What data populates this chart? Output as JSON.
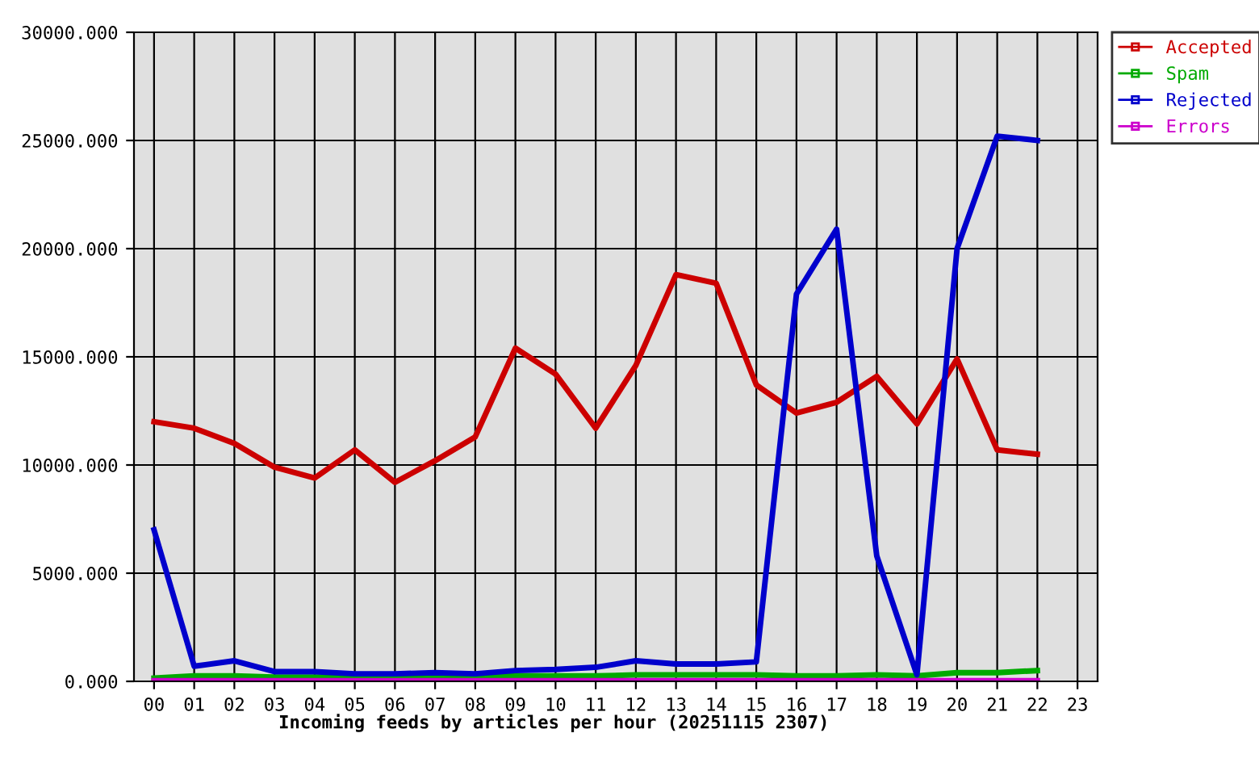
{
  "chart_data": {
    "type": "line",
    "xlabel": "Incoming feeds by articles per hour (20251115 2307)",
    "categories": [
      "00",
      "01",
      "02",
      "03",
      "04",
      "05",
      "06",
      "07",
      "08",
      "09",
      "10",
      "11",
      "12",
      "13",
      "14",
      "15",
      "16",
      "17",
      "18",
      "19",
      "20",
      "21",
      "22",
      "23"
    ],
    "series": [
      {
        "name": "Accepted",
        "color": "#cc0000",
        "values": [
          12000,
          11700,
          11000,
          9900,
          9400,
          10700,
          9200,
          10200,
          11300,
          15400,
          14200,
          11700,
          14600,
          18800,
          18400,
          13700,
          12400,
          12900,
          14100,
          11900,
          14900,
          10700,
          10500,
          null
        ]
      },
      {
        "name": "Spam",
        "color": "#00aa00",
        "values": [
          150,
          250,
          250,
          200,
          200,
          200,
          200,
          250,
          250,
          250,
          250,
          250,
          300,
          300,
          300,
          300,
          250,
          250,
          300,
          250,
          400,
          400,
          500,
          null
        ]
      },
      {
        "name": "Rejected",
        "color": "#0000cc",
        "values": [
          7000,
          700,
          950,
          450,
          450,
          350,
          350,
          400,
          350,
          500,
          550,
          650,
          950,
          800,
          800,
          900,
          17900,
          20900,
          5800,
          300,
          20000,
          25200,
          25000,
          null
        ]
      },
      {
        "name": "Errors",
        "color": "#cc00cc",
        "values": [
          30,
          30,
          30,
          30,
          30,
          30,
          30,
          30,
          30,
          30,
          30,
          30,
          30,
          30,
          30,
          30,
          30,
          30,
          30,
          30,
          30,
          30,
          30,
          null
        ]
      }
    ],
    "ylim": [
      0,
      30000
    ],
    "yticks": [
      {
        "value": 0,
        "label": "0.000"
      },
      {
        "value": 5000,
        "label": "5000.000"
      },
      {
        "value": 10000,
        "label": "10000.000"
      },
      {
        "value": 15000,
        "label": "15000.000"
      },
      {
        "value": 20000,
        "label": "20000.000"
      },
      {
        "value": 25000,
        "label": "25000.000"
      },
      {
        "value": 30000,
        "label": "30000.000"
      }
    ],
    "grid": true,
    "legend": "top right"
  }
}
